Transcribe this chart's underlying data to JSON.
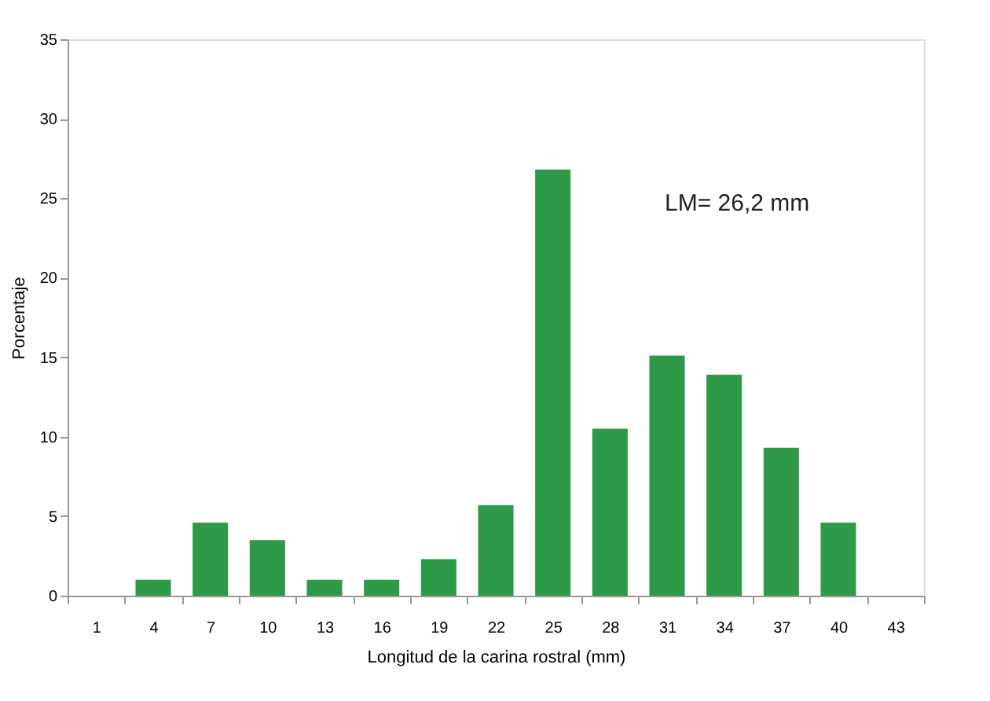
{
  "chart_data": {
    "type": "bar",
    "xlabel": "Longitud de la carina rostral (mm)",
    "ylabel": "Porcentaje",
    "categories": [
      "1",
      "4",
      "7",
      "10",
      "13",
      "16",
      "19",
      "22",
      "25",
      "28",
      "31",
      "34",
      "37",
      "40",
      "43"
    ],
    "values": [
      0,
      1.0,
      4.6,
      3.5,
      1.0,
      1.0,
      2.3,
      5.7,
      26.8,
      10.5,
      15.1,
      13.9,
      9.3,
      4.6,
      0
    ],
    "color": "#2e9a48",
    "ylim": [
      0,
      35
    ],
    "yticks": [
      0,
      5,
      10,
      15,
      20,
      25,
      30,
      35
    ],
    "grid": false,
    "annotations": [
      "LM= 26,2 mm"
    ]
  }
}
